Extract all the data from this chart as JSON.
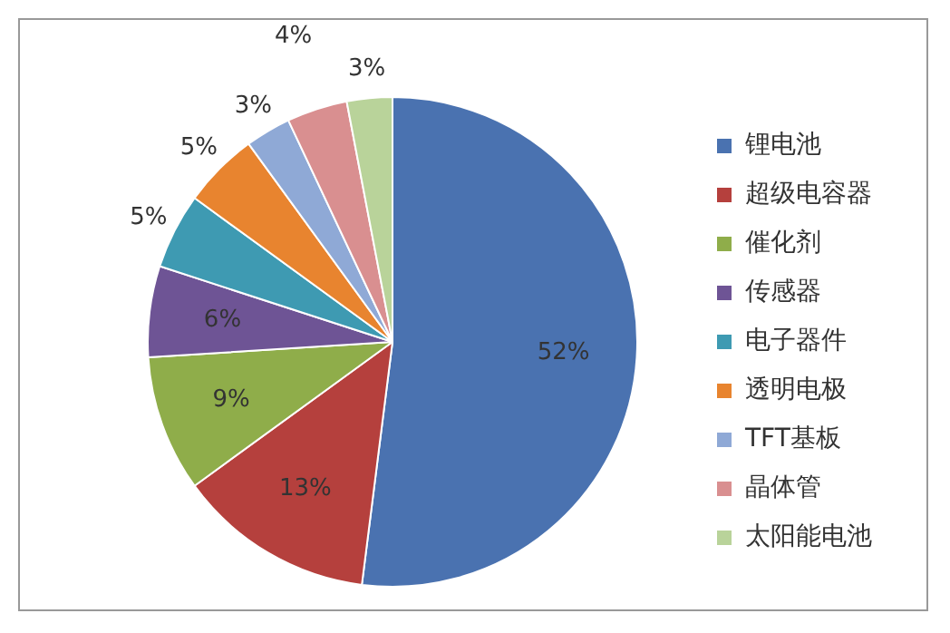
{
  "chart_data": {
    "type": "pie",
    "categories": [
      "锂电池",
      "超级电容器",
      "催化剂",
      "传感器",
      "电子器件",
      "透明电极",
      "TFT基板",
      "晶体管",
      "太阳能电池"
    ],
    "values": [
      52,
      13,
      9,
      6,
      5,
      5,
      3,
      4,
      3
    ],
    "colors": [
      "#4a72b0",
      "#b5403d",
      "#8fad4a",
      "#6e5495",
      "#3e9ab2",
      "#e8842f",
      "#8fa9d6",
      "#d98f90",
      "#b9d39a"
    ],
    "value_labels": [
      "52%",
      "13%",
      "9%",
      "6%",
      "5%",
      "5%",
      "3%",
      "4%",
      "3%"
    ],
    "legend": "right"
  }
}
